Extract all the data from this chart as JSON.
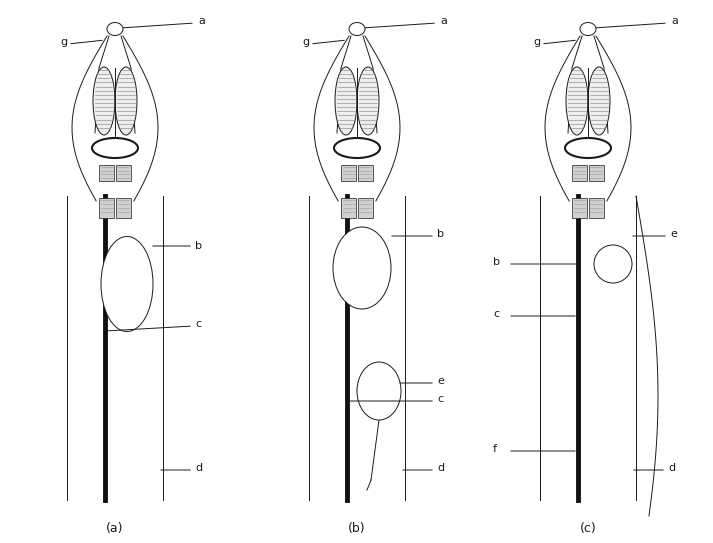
{
  "bg": "#ffffff",
  "lc": "#1a1a1a",
  "gray": "#888888",
  "hatch_color": "#666666",
  "thick_color": "#111111",
  "thin_lw": 0.7,
  "med_lw": 1.2,
  "thick_lw": 3.5,
  "panels": [
    "a",
    "b",
    "c"
  ],
  "panel_labels": [
    "(a)",
    "(b)",
    "(c)"
  ]
}
